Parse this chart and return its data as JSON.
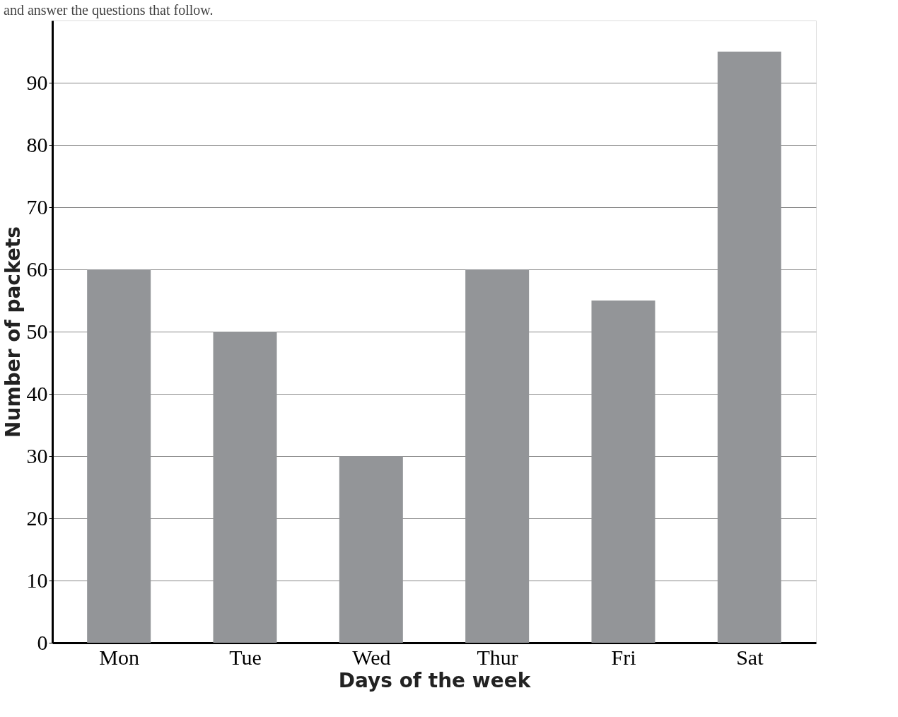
{
  "chart_data": {
    "type": "bar",
    "categories": [
      "Mon",
      "Tue",
      "Wed",
      "Thur",
      "Fri",
      "Sat"
    ],
    "values": [
      60,
      50,
      30,
      60,
      55,
      95
    ],
    "color": "#939598",
    "xlabel": "Days of the week",
    "ylabel": "Number of packets",
    "ylim": [
      0,
      100
    ],
    "yticks": [
      0,
      10,
      20,
      30,
      40,
      50,
      60,
      70,
      80,
      90
    ],
    "grid": true,
    "annotations": [
      "and answer the questions that follow."
    ]
  }
}
